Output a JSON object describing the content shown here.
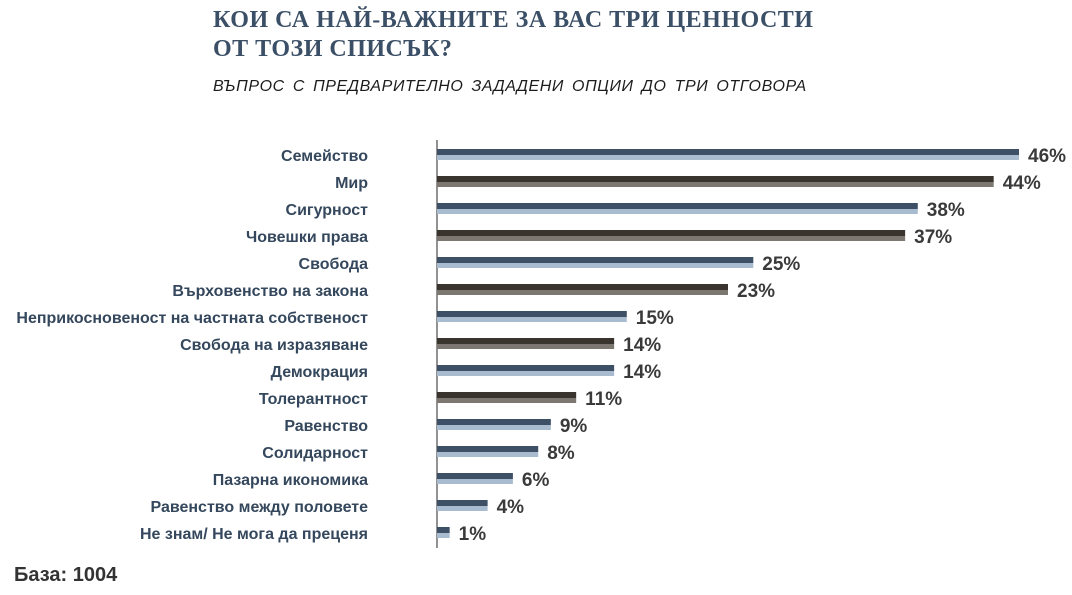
{
  "title_line1": "КОИ СА НАЙ-ВАЖНИТЕ ЗА ВАС ТРИ ЦЕННОСТИ",
  "title_line2": "ОТ ТОЗИ СПИСЪК?",
  "subtitle": "ВЪПРОС С ПРЕДВАРИТЕЛНО  ЗАДАДЕНИ ОПЦИИ  ДО ТРИ ОТГОВОРА",
  "base_label": "База: 1004",
  "colors": {
    "title": "#3b4f66",
    "label": "#34475c",
    "blue_bar": "#3d5066",
    "blue_shadow": "#a9bccf",
    "dark_bar": "#3a342f",
    "dark_shadow": "#7d7772",
    "axis": "#4a4a4a"
  },
  "chart_data": {
    "type": "bar",
    "orientation": "horizontal",
    "categories": [
      "Семейство",
      "Мир",
      "Сигурност",
      "Човешки права",
      "Свобода",
      "Върховенство на закона",
      "Неприкосновеност на частната собственост",
      "Свобода на изразяване",
      "Демокрация",
      "Толерантност",
      "Равенство",
      "Солидарност",
      "Пазарна икономика",
      "Равенство между половете",
      "Не знам/ Не мога да преценя"
    ],
    "values": [
      46,
      44,
      38,
      37,
      25,
      23,
      15,
      14,
      14,
      11,
      9,
      8,
      6,
      4,
      1
    ],
    "value_labels": [
      "46%",
      "44%",
      "38%",
      "37%",
      "25%",
      "23%",
      "15%",
      "14%",
      "14%",
      "11%",
      "9%",
      "8%",
      "6%",
      "4%",
      "1%"
    ],
    "bar_styles": [
      "blue",
      "dark",
      "blue",
      "dark",
      "blue",
      "dark",
      "blue",
      "dark",
      "blue",
      "dark",
      "blue",
      "blue",
      "blue",
      "blue",
      "blue"
    ],
    "unit": "%",
    "xlim": [
      0,
      46
    ],
    "grid": false,
    "legend": "none"
  }
}
